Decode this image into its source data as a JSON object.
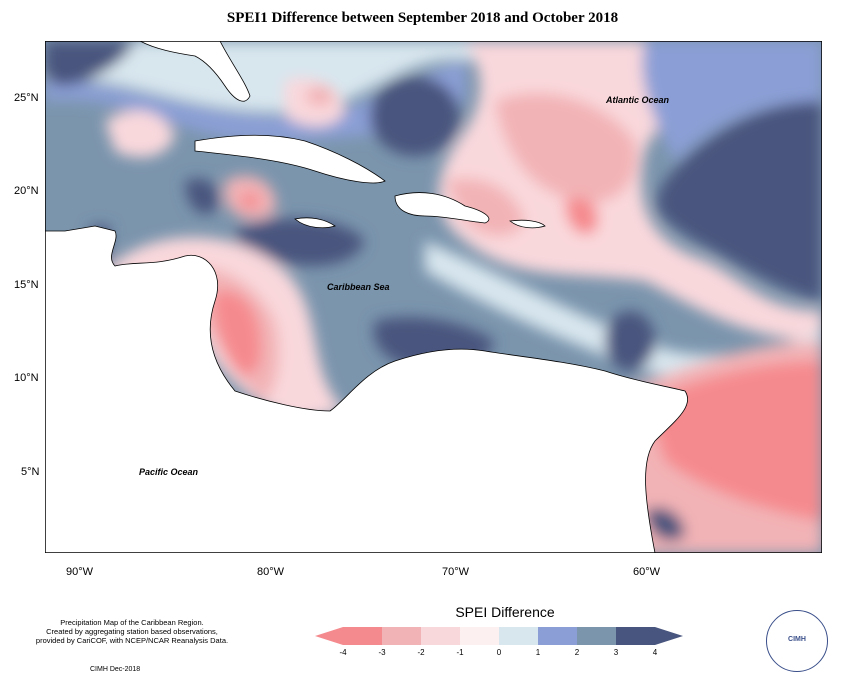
{
  "title": "SPEI1 Difference between September 2018 and October 2018",
  "ocean_labels": {
    "atlantic": "Atlantic Ocean",
    "caribbean": "Caribbean Sea",
    "pacific": "Pacific Ocean"
  },
  "lat_labels": [
    "25°N",
    "20°N",
    "15°N",
    "10°N",
    "5°N"
  ],
  "lon_labels": [
    "90°W",
    "80°W",
    "70°W",
    "60°W"
  ],
  "credit_lines": [
    "Precipitation Map of the Caribbean Region.",
    "Created by aggregating station based observations,",
    "provided by CariCOF, with NCEP/NCAR Reanalysis Data."
  ],
  "credit_date": "CIMH Dec-2018",
  "legend": {
    "title": "SPEI Difference",
    "ticks": [
      "-4",
      "-3",
      "-2",
      "-1",
      "0",
      "1",
      "2",
      "3",
      "4"
    ],
    "colors": [
      "#f58a8e",
      "#f2b3b6",
      "#f9d8dc",
      "#fdf0f1",
      "#d8e6ee",
      "#8b9fd6",
      "#7b95ad",
      "#48557e"
    ]
  },
  "logo_text": "CIMH"
}
